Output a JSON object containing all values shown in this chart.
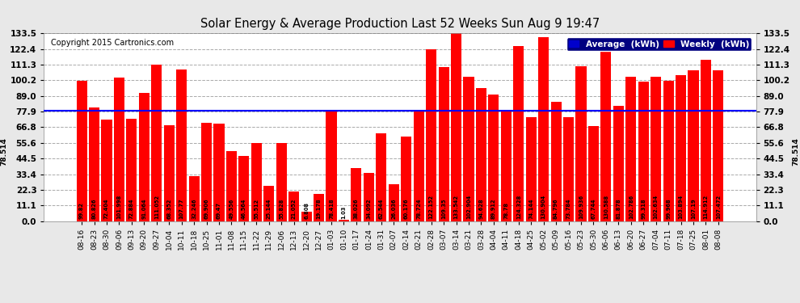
{
  "title": "Solar Energy & Average Production Last 52 Weeks Sun Aug 9 19:47",
  "copyright": "Copyright 2015 Cartronics.com",
  "average_value": 78.514,
  "bar_color": "#ff0000",
  "average_line_color": "#0000ff",
  "background_color": "#e8e8e8",
  "plot_bg_color": "#ffffff",
  "grid_color": "#aaaaaa",
  "yticks": [
    0.0,
    11.1,
    22.3,
    33.4,
    44.5,
    55.6,
    66.8,
    77.9,
    89.0,
    100.2,
    111.3,
    122.4,
    133.5
  ],
  "legend_avg_color": "#0000cc",
  "legend_weekly_color": "#ff0000",
  "categories": [
    "08-16",
    "08-23",
    "08-30",
    "09-06",
    "09-13",
    "09-20",
    "09-27",
    "10-04",
    "10-11",
    "10-18",
    "10-25",
    "11-01",
    "11-08",
    "11-15",
    "11-22",
    "11-29",
    "12-06",
    "12-13",
    "12-20",
    "12-27",
    "01-03",
    "01-10",
    "01-17",
    "01-24",
    "01-31",
    "02-07",
    "02-14",
    "02-21",
    "02-28",
    "03-07",
    "03-14",
    "03-21",
    "03-28",
    "04-04",
    "04-11",
    "04-18",
    "04-25",
    "05-02",
    "05-09",
    "05-16",
    "05-23",
    "05-30",
    "06-06",
    "06-13",
    "06-20",
    "06-27",
    "07-04",
    "07-11",
    "07-18",
    "07-25",
    "08-01",
    "08-08"
  ],
  "values": [
    99.82,
    80.826,
    72.404,
    101.998,
    72.884,
    91.064,
    111.052,
    68.352,
    107.77,
    32.246,
    69.906,
    69.47,
    49.556,
    46.564,
    55.512,
    25.144,
    55.828,
    21.052,
    6.808,
    19.178,
    78.418,
    1.03,
    38.026,
    34.092,
    62.544,
    26.036,
    60.176,
    78.724,
    122.152,
    109.35,
    133.542,
    102.904,
    94.628,
    89.912,
    78.78,
    124.328,
    74.144,
    130.904,
    84.796,
    73.784,
    109.936,
    67.744,
    130.588,
    81.878,
    102.786,
    99.318,
    102.634,
    99.968,
    103.894,
    107.19,
    114.912,
    107.472
  ]
}
